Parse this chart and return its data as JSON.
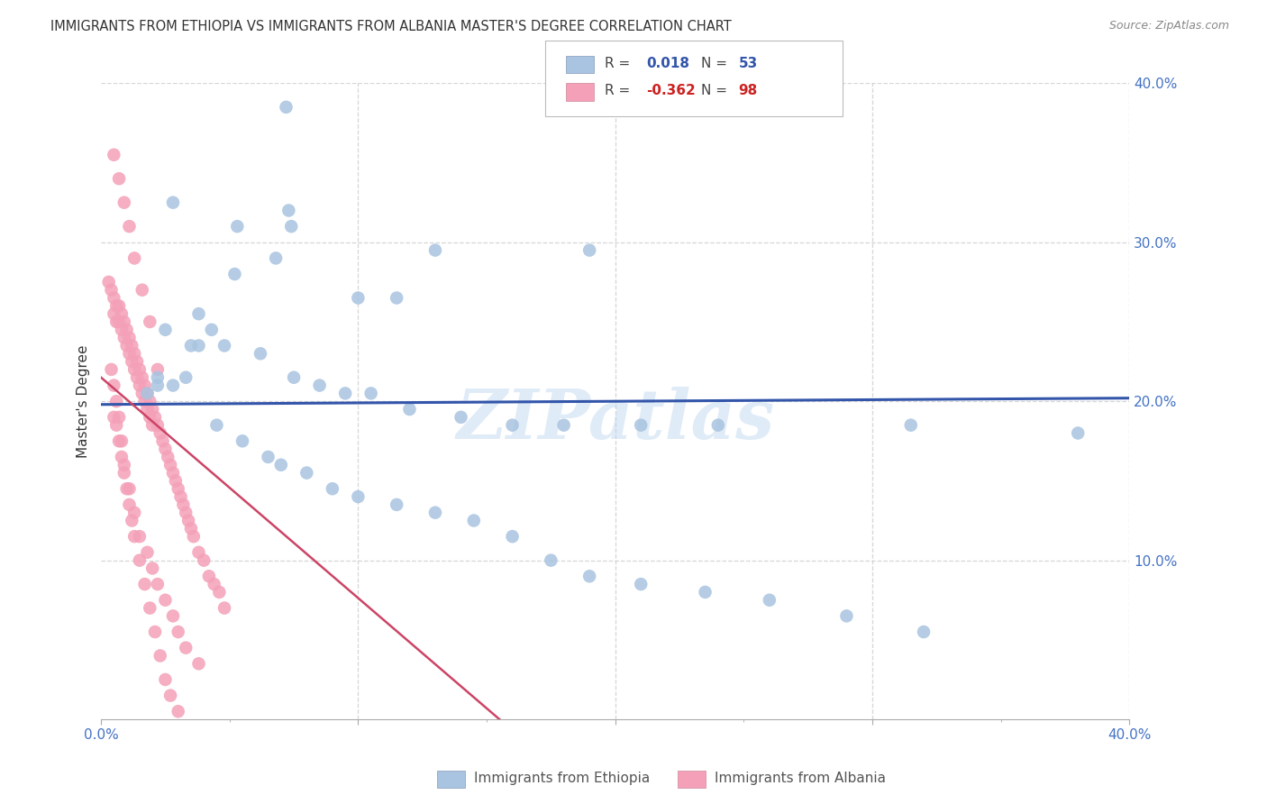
{
  "title": "IMMIGRANTS FROM ETHIOPIA VS IMMIGRANTS FROM ALBANIA MASTER'S DEGREE CORRELATION CHART",
  "source": "Source: ZipAtlas.com",
  "ylabel": "Master's Degree",
  "watermark": "ZIPatlas",
  "legend_blue_label": "Immigrants from Ethiopia",
  "legend_pink_label": "Immigrants from Albania",
  "R_blue": "0.018",
  "N_blue": "53",
  "R_pink": "-0.362",
  "N_pink": "98",
  "xlim": [
    0.0,
    0.4
  ],
  "ylim": [
    0.0,
    0.4
  ],
  "scatter_blue": {
    "x": [
      0.072,
      0.028,
      0.053,
      0.052,
      0.074,
      0.068,
      0.073,
      0.13,
      0.1,
      0.115,
      0.19,
      0.038,
      0.025,
      0.035,
      0.038,
      0.043,
      0.048,
      0.022,
      0.018,
      0.022,
      0.028,
      0.033,
      0.062,
      0.075,
      0.085,
      0.095,
      0.105,
      0.12,
      0.14,
      0.16,
      0.18,
      0.21,
      0.24,
      0.315,
      0.38,
      0.045,
      0.055,
      0.065,
      0.07,
      0.08,
      0.09,
      0.1,
      0.115,
      0.13,
      0.145,
      0.16,
      0.175,
      0.19,
      0.21,
      0.235,
      0.26,
      0.29,
      0.32
    ],
    "y": [
      0.385,
      0.325,
      0.31,
      0.28,
      0.31,
      0.29,
      0.32,
      0.295,
      0.265,
      0.265,
      0.295,
      0.255,
      0.245,
      0.235,
      0.235,
      0.245,
      0.235,
      0.215,
      0.205,
      0.21,
      0.21,
      0.215,
      0.23,
      0.215,
      0.21,
      0.205,
      0.205,
      0.195,
      0.19,
      0.185,
      0.185,
      0.185,
      0.185,
      0.185,
      0.18,
      0.185,
      0.175,
      0.165,
      0.16,
      0.155,
      0.145,
      0.14,
      0.135,
      0.13,
      0.125,
      0.115,
      0.1,
      0.09,
      0.085,
      0.08,
      0.075,
      0.065,
      0.055
    ]
  },
  "scatter_pink": {
    "x": [
      0.003,
      0.004,
      0.005,
      0.005,
      0.006,
      0.006,
      0.007,
      0.007,
      0.008,
      0.008,
      0.009,
      0.009,
      0.01,
      0.01,
      0.011,
      0.011,
      0.012,
      0.012,
      0.013,
      0.013,
      0.014,
      0.014,
      0.015,
      0.015,
      0.016,
      0.016,
      0.017,
      0.017,
      0.018,
      0.018,
      0.019,
      0.019,
      0.02,
      0.02,
      0.021,
      0.022,
      0.023,
      0.024,
      0.025,
      0.026,
      0.027,
      0.028,
      0.029,
      0.03,
      0.031,
      0.032,
      0.033,
      0.034,
      0.035,
      0.036,
      0.038,
      0.04,
      0.042,
      0.044,
      0.046,
      0.048,
      0.005,
      0.006,
      0.007,
      0.008,
      0.009,
      0.01,
      0.011,
      0.012,
      0.013,
      0.015,
      0.017,
      0.019,
      0.021,
      0.023,
      0.025,
      0.027,
      0.03,
      0.004,
      0.005,
      0.006,
      0.007,
      0.008,
      0.009,
      0.011,
      0.013,
      0.015,
      0.018,
      0.02,
      0.022,
      0.025,
      0.028,
      0.03,
      0.033,
      0.038,
      0.005,
      0.007,
      0.009,
      0.011,
      0.013,
      0.016,
      0.019,
      0.022
    ],
    "y": [
      0.275,
      0.27,
      0.265,
      0.255,
      0.26,
      0.25,
      0.26,
      0.25,
      0.255,
      0.245,
      0.25,
      0.24,
      0.245,
      0.235,
      0.24,
      0.23,
      0.235,
      0.225,
      0.23,
      0.22,
      0.225,
      0.215,
      0.22,
      0.21,
      0.215,
      0.205,
      0.21,
      0.2,
      0.205,
      0.195,
      0.2,
      0.19,
      0.195,
      0.185,
      0.19,
      0.185,
      0.18,
      0.175,
      0.17,
      0.165,
      0.16,
      0.155,
      0.15,
      0.145,
      0.14,
      0.135,
      0.13,
      0.125,
      0.12,
      0.115,
      0.105,
      0.1,
      0.09,
      0.085,
      0.08,
      0.07,
      0.19,
      0.185,
      0.175,
      0.165,
      0.155,
      0.145,
      0.135,
      0.125,
      0.115,
      0.1,
      0.085,
      0.07,
      0.055,
      0.04,
      0.025,
      0.015,
      0.005,
      0.22,
      0.21,
      0.2,
      0.19,
      0.175,
      0.16,
      0.145,
      0.13,
      0.115,
      0.105,
      0.095,
      0.085,
      0.075,
      0.065,
      0.055,
      0.045,
      0.035,
      0.355,
      0.34,
      0.325,
      0.31,
      0.29,
      0.27,
      0.25,
      0.22
    ]
  },
  "blue_line": {
    "x_start": 0.0,
    "x_end": 0.4,
    "y_start": 0.198,
    "y_end": 0.202
  },
  "pink_line": {
    "x_start": 0.0,
    "x_end": 0.155,
    "y_start": 0.215,
    "y_end": 0.0
  },
  "blue_dot_color": "#a8c4e0",
  "blue_line_color": "#3355aa",
  "pink_dot_color": "#f4a0b8",
  "pink_line_color": "#cc4466",
  "background_color": "#ffffff",
  "grid_color": "#cccccc",
  "title_color": "#333333",
  "axis_label_color": "#4472c4",
  "watermark_color": "#b8d4ee"
}
